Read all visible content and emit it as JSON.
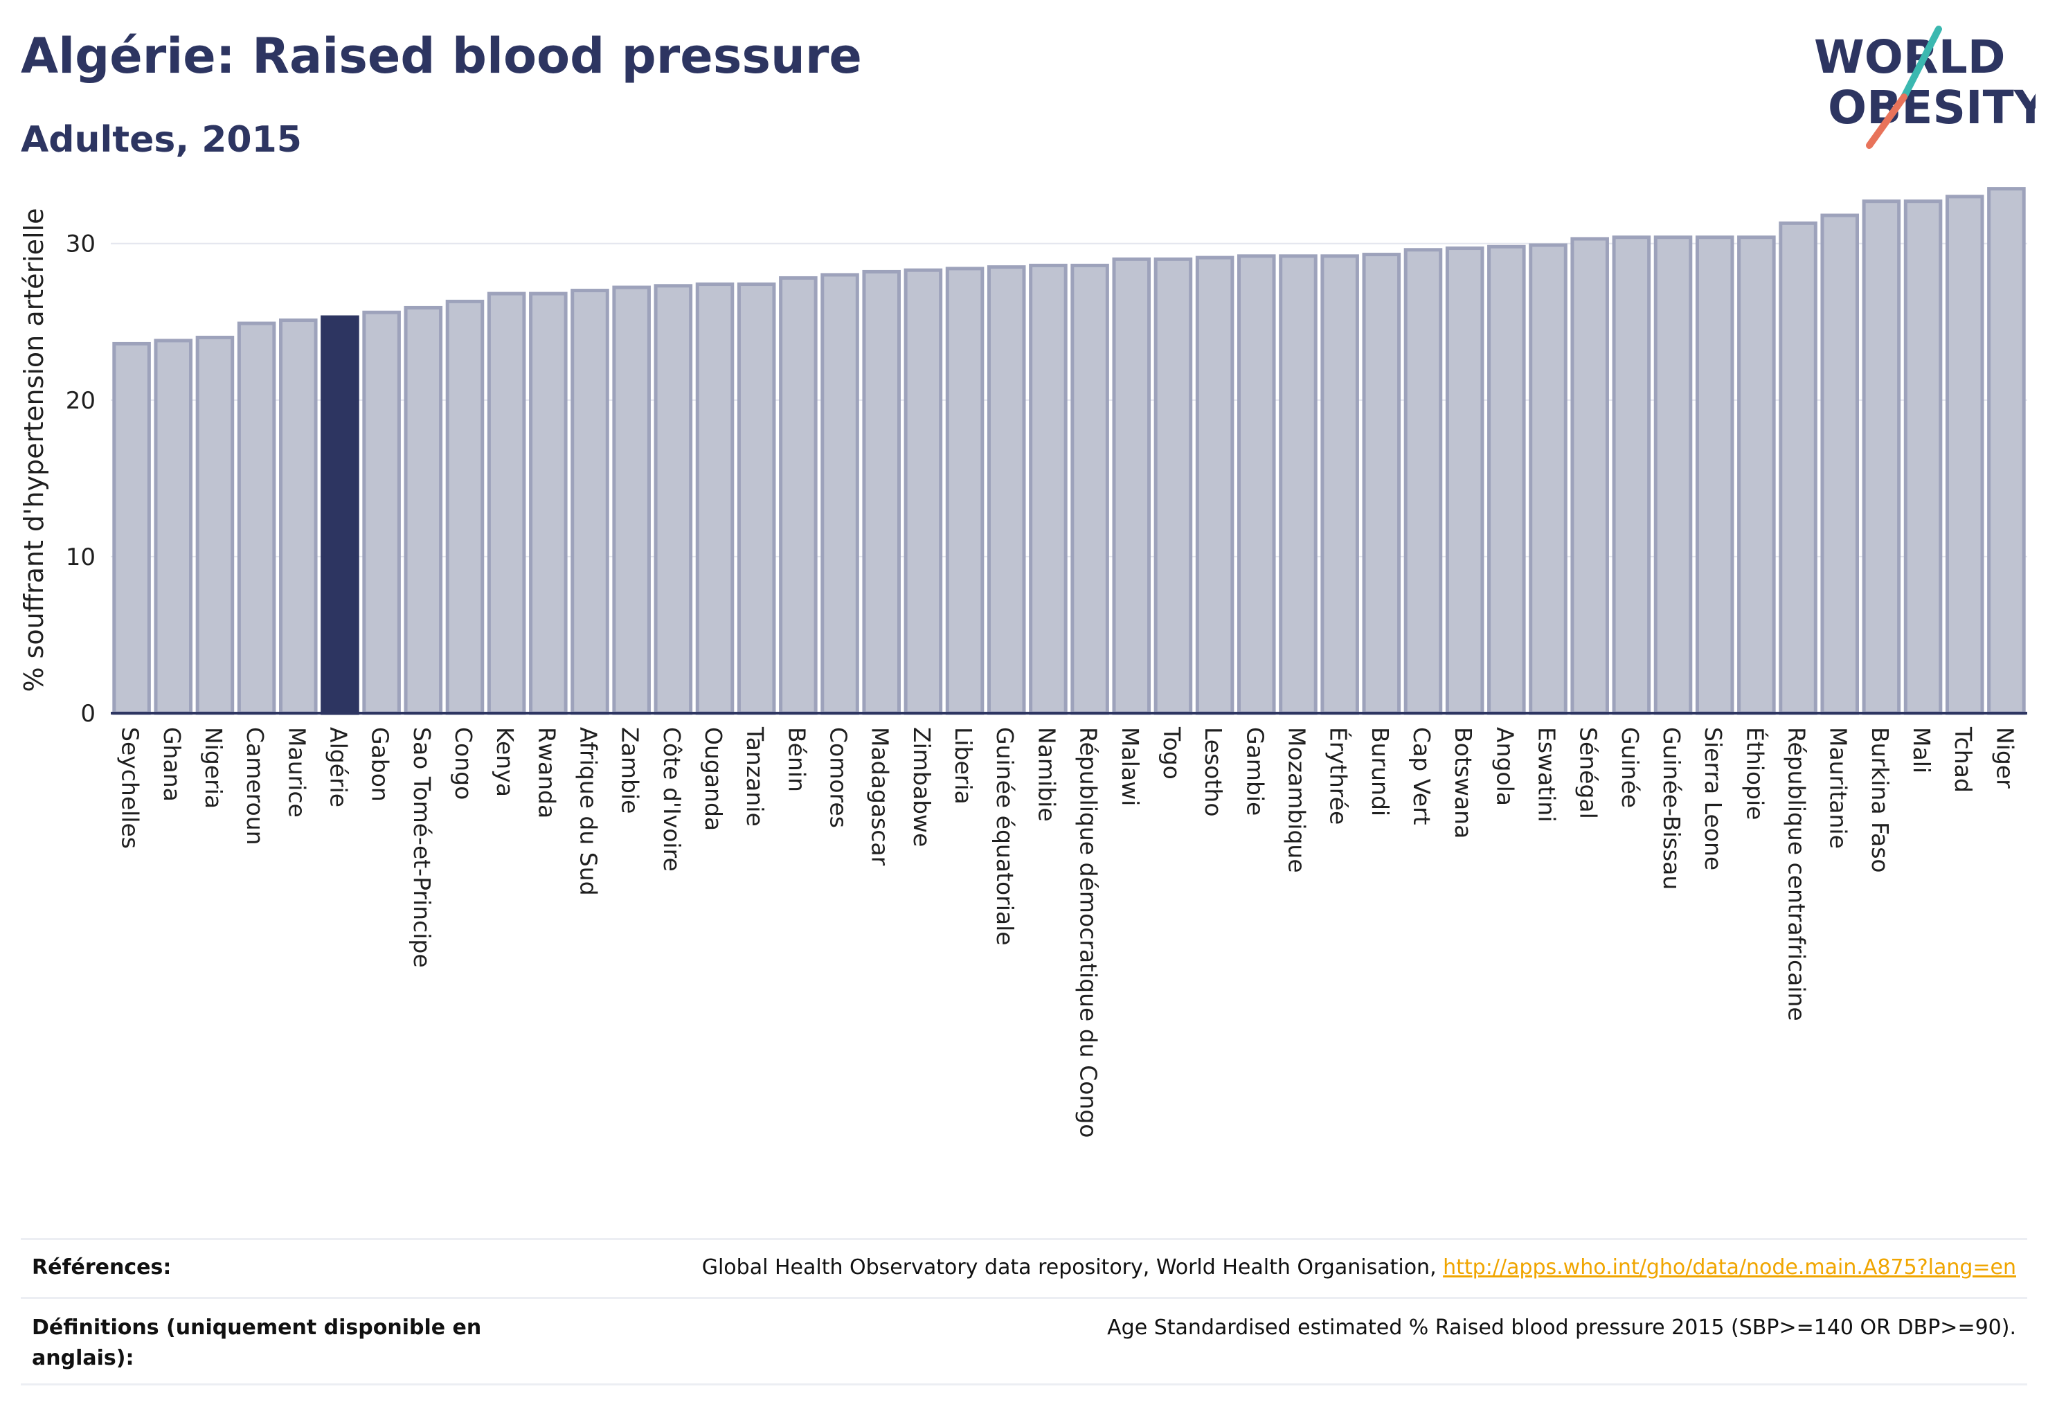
{
  "header": {
    "title": "Algérie: Raised blood pressure",
    "subtitle": "Adultes, 2015",
    "logo_line1": "WORLD",
    "logo_line2": "OBESITY"
  },
  "colors": {
    "bar": "#bfc3d1",
    "bar_border": "#9da2bb",
    "highlight": "#2d3561",
    "title": "#2d3561",
    "link": "#f0a500",
    "logo_teal": "#3bb8b0",
    "logo_coral": "#e8735a"
  },
  "chart_data": {
    "type": "bar",
    "title": "Algérie: Raised blood pressure",
    "subtitle": "Adultes, 2015",
    "xlabel": "",
    "ylabel": "% souffrant d'hypertension artérielle",
    "ylim": [
      0,
      34.5
    ],
    "yticks": [
      0,
      10,
      20,
      30
    ],
    "grid": true,
    "highlight": "Algérie",
    "categories": [
      "Seychelles",
      "Ghana",
      "Nigeria",
      "Cameroun",
      "Maurice",
      "Algérie",
      "Gabon",
      "Sao Tomé-et-Principe",
      "Congo",
      "Kenya",
      "Rwanda",
      "Afrique du Sud",
      "Zambie",
      "Côte d'Ivoire",
      "Ouganda",
      "Tanzanie",
      "Bénin",
      "Comores",
      "Madagascar",
      "Zimbabwe",
      "Liberia",
      "Guinée équatoriale",
      "Namibie",
      "République démocratique du Congo",
      "Malawi",
      "Togo",
      "Lesotho",
      "Gambie",
      "Mozambique",
      "Érythrée",
      "Burundi",
      "Cap Vert",
      "Botswana",
      "Angola",
      "Eswatini",
      "Sénégal",
      "Guinée",
      "Guinée-Bissau",
      "Sierra Leone",
      "Éthiopie",
      "République centrafricaine",
      "Mauritanie",
      "Burkina Faso",
      "Mali",
      "Tchad",
      "Niger"
    ],
    "values": [
      23.6,
      23.8,
      24.0,
      24.9,
      25.1,
      25.3,
      25.6,
      25.9,
      26.3,
      26.8,
      26.8,
      27.0,
      27.2,
      27.3,
      27.4,
      27.4,
      27.8,
      28.0,
      28.2,
      28.3,
      28.4,
      28.5,
      28.6,
      28.6,
      29.0,
      29.0,
      29.1,
      29.2,
      29.2,
      29.2,
      29.3,
      29.6,
      29.7,
      29.8,
      29.9,
      30.3,
      30.4,
      30.4,
      30.4,
      30.4,
      31.3,
      31.8,
      32.7,
      32.7,
      33.0,
      33.5
    ]
  },
  "footer": {
    "references_label": "Références:",
    "references_text": "Global Health Observatory data repository, World Health Organisation, ",
    "references_link": "http://apps.who.int/gho/data/node.main.A875?lang=en",
    "definitions_label_line1": "Définitions (uniquement disponible en",
    "definitions_label_line2": "anglais):",
    "definitions_text": "Age Standardised estimated % Raised blood pressure 2015 (SBP>=140 OR DBP>=90)."
  }
}
